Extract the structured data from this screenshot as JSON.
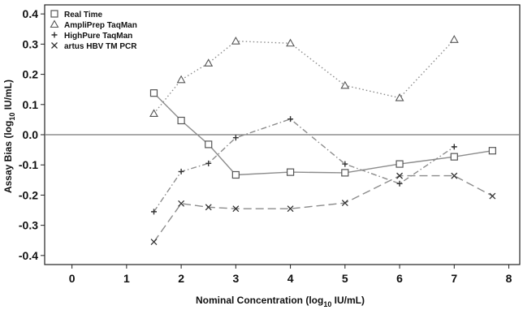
{
  "chart_data": {
    "type": "line",
    "xlabel": "Nominal Concentration (log",
    "xlabel_sub": "10",
    "xlabel_end": " IU/mL)",
    "ylabel": "Assay Bias (log",
    "ylabel_sub": "10",
    "ylabel_end": " IU/mL)",
    "xlim": [
      -0.5,
      8.2
    ],
    "ylim": [
      -0.43,
      0.43
    ],
    "x_ticks": [
      0,
      1,
      2,
      3,
      4,
      5,
      6,
      7,
      8
    ],
    "y_ticks": [
      0.4,
      0.3,
      0.2,
      0.1,
      0.0,
      -0.1,
      -0.2,
      -0.3,
      -0.4
    ],
    "y_tick_labels": [
      "0.4",
      "0.3",
      "0.2",
      "0.1",
      "0.0",
      "-0.1",
      "-0.2",
      "-0.3",
      "-0.4"
    ],
    "reference_line_y": 0.0,
    "legend_position": "top-left",
    "series": [
      {
        "name": "Real Time",
        "marker": "square",
        "line_style": "solid",
        "color": "#8c8c8c",
        "x": [
          1.5,
          2.0,
          2.5,
          3.0,
          4.0,
          5.0,
          6.0,
          7.0,
          7.7
        ],
        "y": [
          0.138,
          0.047,
          -0.032,
          -0.133,
          -0.124,
          -0.126,
          -0.097,
          -0.073,
          -0.053
        ]
      },
      {
        "name": "AmpliPrep TaqMan",
        "marker": "triangle",
        "line_style": "dotted",
        "color": "#8c8c8c",
        "x": [
          1.5,
          2.0,
          2.5,
          3.0,
          4.0,
          5.0,
          6.0,
          7.0
        ],
        "y": [
          0.07,
          0.182,
          0.237,
          0.31,
          0.303,
          0.163,
          0.122,
          0.315
        ]
      },
      {
        "name": "HighPure TaqMan",
        "marker": "plus",
        "line_style": "dashdot",
        "color": "#8c8c8c",
        "x": [
          1.5,
          2.0,
          2.5,
          3.0,
          4.0,
          5.0,
          6.0,
          7.0
        ],
        "y": [
          -0.255,
          -0.122,
          -0.095,
          -0.01,
          0.052,
          -0.097,
          -0.162,
          -0.04
        ]
      },
      {
        "name": "artus HBV TM PCR",
        "marker": "x",
        "line_style": "dashed",
        "color": "#8c8c8c",
        "x": [
          1.5,
          2.0,
          2.5,
          3.0,
          4.0,
          5.0,
          6.0,
          6.6,
          7.0,
          7.7
        ],
        "y": [
          -0.355,
          -0.228,
          -0.24,
          -0.245,
          -0.245,
          -0.226,
          -0.136,
          -0.136,
          -0.136,
          -0.203
        ],
        "marker_mask": [
          true,
          true,
          true,
          true,
          true,
          true,
          true,
          false,
          true,
          true
        ]
      }
    ]
  }
}
